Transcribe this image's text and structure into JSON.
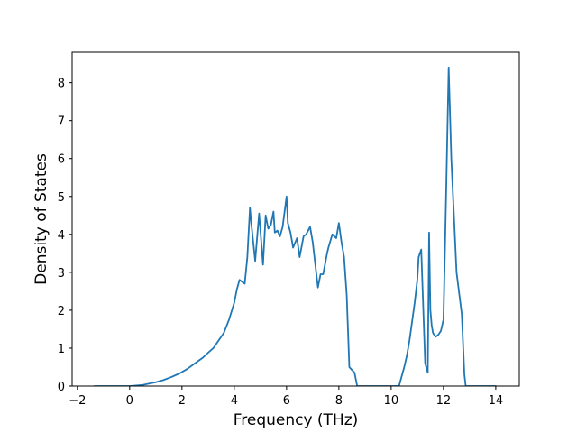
{
  "chart_data": {
    "type": "line",
    "title": "",
    "xlabel": "Frequency (THz)",
    "ylabel": "Density of States",
    "xlim": [
      -2.2,
      14.9
    ],
    "ylim": [
      0,
      8.8
    ],
    "xticks": [
      -2,
      0,
      2,
      4,
      6,
      8,
      10,
      12,
      14
    ],
    "yticks": [
      0,
      1,
      2,
      3,
      4,
      5,
      6,
      7,
      8
    ],
    "xtick_labels": [
      "−2",
      "0",
      "2",
      "4",
      "6",
      "8",
      "10",
      "12",
      "14"
    ],
    "ytick_labels": [
      "0",
      "1",
      "2",
      "3",
      "4",
      "5",
      "6",
      "7",
      "8"
    ],
    "grid": false,
    "legend": "none",
    "line_color": "#1f77b4",
    "series": [
      {
        "x": [
          -1.35,
          -1.0,
          -0.5,
          0.0,
          0.5,
          1.0,
          1.3,
          1.6,
          1.9,
          2.2,
          2.5,
          2.8,
          3.0,
          3.2,
          3.4,
          3.6,
          3.8,
          4.0,
          4.1,
          4.2,
          4.4,
          4.5,
          4.6,
          4.65,
          4.8,
          4.95,
          5.1,
          5.2,
          5.3,
          5.4,
          5.5,
          5.55,
          5.65,
          5.75,
          5.85,
          6.0,
          6.05,
          6.15,
          6.25,
          6.4,
          6.5,
          6.65,
          6.75,
          6.9,
          7.0,
          7.1,
          7.2,
          7.3,
          7.4,
          7.55,
          7.6,
          7.75,
          7.9,
          8.0,
          8.1,
          8.2,
          8.3,
          8.4,
          8.6,
          8.7,
          9.0,
          9.5,
          10.0,
          10.3,
          10.5,
          10.6,
          10.7,
          10.8,
          10.9,
          11.0,
          11.05,
          11.15,
          11.3,
          11.4,
          11.45,
          11.5,
          11.55,
          11.6,
          11.7,
          11.8,
          11.9,
          12.0,
          12.1,
          12.2,
          12.3,
          12.4,
          12.5,
          12.7,
          12.8,
          12.85,
          13.0,
          13.5,
          14.0
        ],
        "y": [
          0,
          0,
          0,
          0,
          0.03,
          0.1,
          0.16,
          0.24,
          0.33,
          0.45,
          0.6,
          0.75,
          0.88,
          1.0,
          1.2,
          1.4,
          1.75,
          2.2,
          2.55,
          2.8,
          2.7,
          3.4,
          4.7,
          4.3,
          3.3,
          4.55,
          3.2,
          4.5,
          4.15,
          4.25,
          4.6,
          4.05,
          4.1,
          3.95,
          4.2,
          5.0,
          4.3,
          4.05,
          3.65,
          3.9,
          3.4,
          3.95,
          4.0,
          4.2,
          3.8,
          3.2,
          2.6,
          2.95,
          2.95,
          3.5,
          3.65,
          4.0,
          3.9,
          4.3,
          3.8,
          3.4,
          2.4,
          0.5,
          0.35,
          0,
          0,
          0,
          0,
          0,
          0.5,
          0.8,
          1.2,
          1.7,
          2.2,
          2.8,
          3.4,
          3.6,
          0.6,
          0.35,
          4.05,
          2.0,
          1.6,
          1.4,
          1.3,
          1.35,
          1.45,
          1.75,
          5.0,
          8.4,
          6.0,
          4.5,
          3.0,
          1.9,
          0.3,
          0,
          0,
          0,
          0
        ]
      }
    ]
  }
}
